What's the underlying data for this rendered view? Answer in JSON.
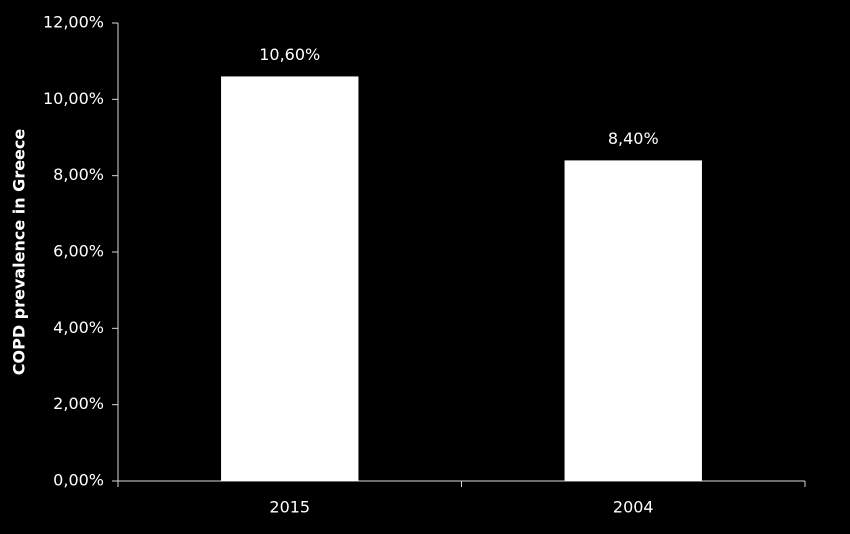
{
  "chart_data": {
    "type": "bar",
    "y_axis_label": "COPD prevalence in Greece",
    "categories": [
      "2015",
      "2004"
    ],
    "values": [
      10.6,
      8.4
    ],
    "value_labels": [
      "10,60%",
      "8,40%"
    ],
    "color": "#ffffff",
    "ylim": [
      0,
      12
    ],
    "yticks": [
      {
        "value": 0,
        "label": "0,00%"
      },
      {
        "value": 2,
        "label": "2,00%"
      },
      {
        "value": 4,
        "label": "4,00%"
      },
      {
        "value": 6,
        "label": "6,00%"
      },
      {
        "value": 8,
        "label": "8,00%"
      },
      {
        "value": 10,
        "label": "10,00%"
      },
      {
        "value": 12,
        "label": "12,00%"
      }
    ],
    "grid": false
  }
}
